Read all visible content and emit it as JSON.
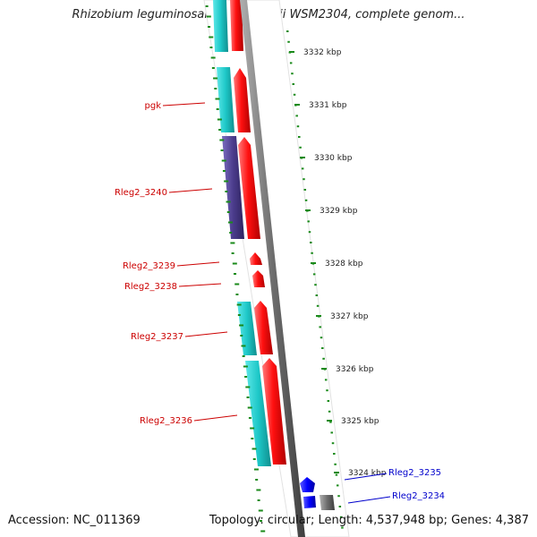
{
  "title": "Rhizobium leguminosarum bv. trifolii WSM2304, complete genom...",
  "footer": {
    "accession": "Accession: NC_011369",
    "stats": "Topology: circular; Length: 4,537,948 bp; Genes: 4,387"
  },
  "colors": {
    "forward_cds": "#ff0000",
    "reverse_cds": "#1ec8c8",
    "purple_feature": "#4b3c8c",
    "blue_feature": "#0000ff",
    "backbone": "#808080",
    "tick": "#1a8a1a",
    "label_red": "#cc0000",
    "label_blue": "#0000cc"
  },
  "scale_ticks": [
    "3332 kbp",
    "3331 kbp",
    "3330 kbp",
    "3329 kbp",
    "3328 kbp",
    "3327 kbp",
    "3326 kbp",
    "3325 kbp",
    "3324 kbp"
  ],
  "gene_labels": [
    {
      "text": "pgk",
      "color": "red"
    },
    {
      "text": "Rleg2_3240",
      "color": "red"
    },
    {
      "text": "Rleg2_3239",
      "color": "red"
    },
    {
      "text": "Rleg2_3238",
      "color": "red"
    },
    {
      "text": "Rleg2_3237",
      "color": "red"
    },
    {
      "text": "Rleg2_3236",
      "color": "red"
    },
    {
      "text": "Rleg2_3235",
      "color": "blue"
    },
    {
      "text": "Rleg2_3234",
      "color": "blue"
    }
  ]
}
